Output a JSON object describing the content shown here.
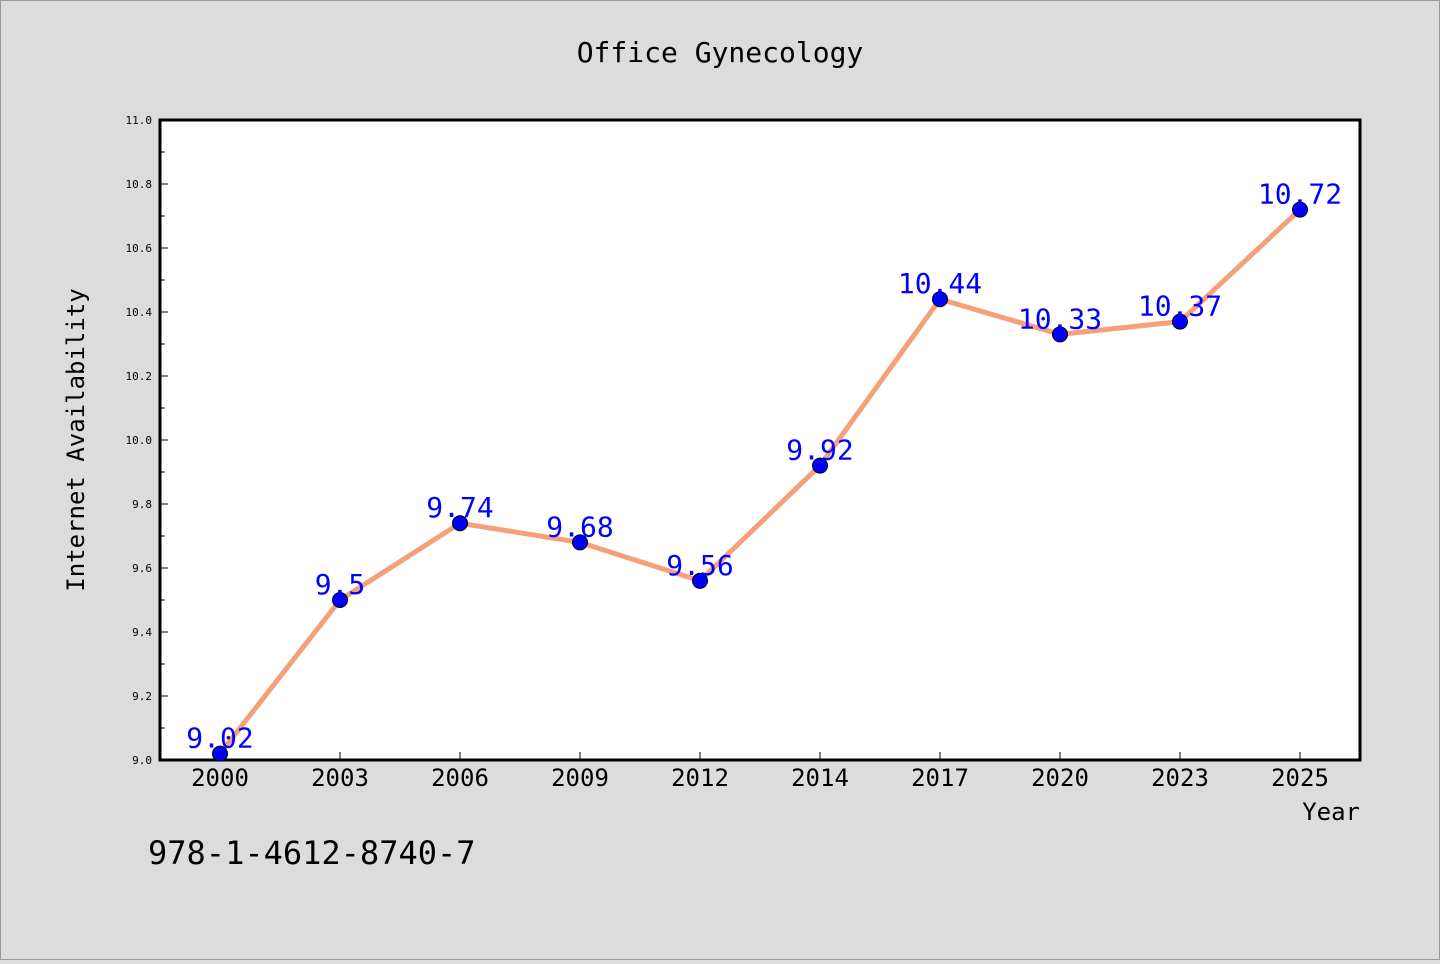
{
  "chart_data": {
    "type": "line",
    "title": "Office Gynecology",
    "xlabel": "Year",
    "ylabel": "Internet Availability",
    "categories": [
      "2000",
      "2003",
      "2006",
      "2009",
      "2012",
      "2014",
      "2017",
      "2020",
      "2023",
      "2025"
    ],
    "values": [
      9.02,
      9.5,
      9.74,
      9.68,
      9.56,
      9.92,
      10.44,
      10.33,
      10.37,
      10.72
    ],
    "data_labels": [
      "9.02",
      "9.5",
      "9.74",
      "9.68",
      "9.56",
      "9.92",
      "10.44",
      "10.33",
      "10.37",
      "10.72"
    ],
    "ylim": [
      9.0,
      11.0
    ],
    "yticks": [
      "9.0",
      "9.2",
      "9.4",
      "9.6",
      "9.8",
      "10.0",
      "10.2",
      "10.4",
      "10.6",
      "10.8",
      "11.0"
    ],
    "grid": false,
    "legend": "none",
    "colors": {
      "line": "#f4a07a",
      "marker": "#0000ff",
      "label": "#0000ff",
      "background": "#dcdcdc",
      "plot_background": "#ffffff"
    }
  },
  "footer_text": "978-1-4612-8740-7"
}
